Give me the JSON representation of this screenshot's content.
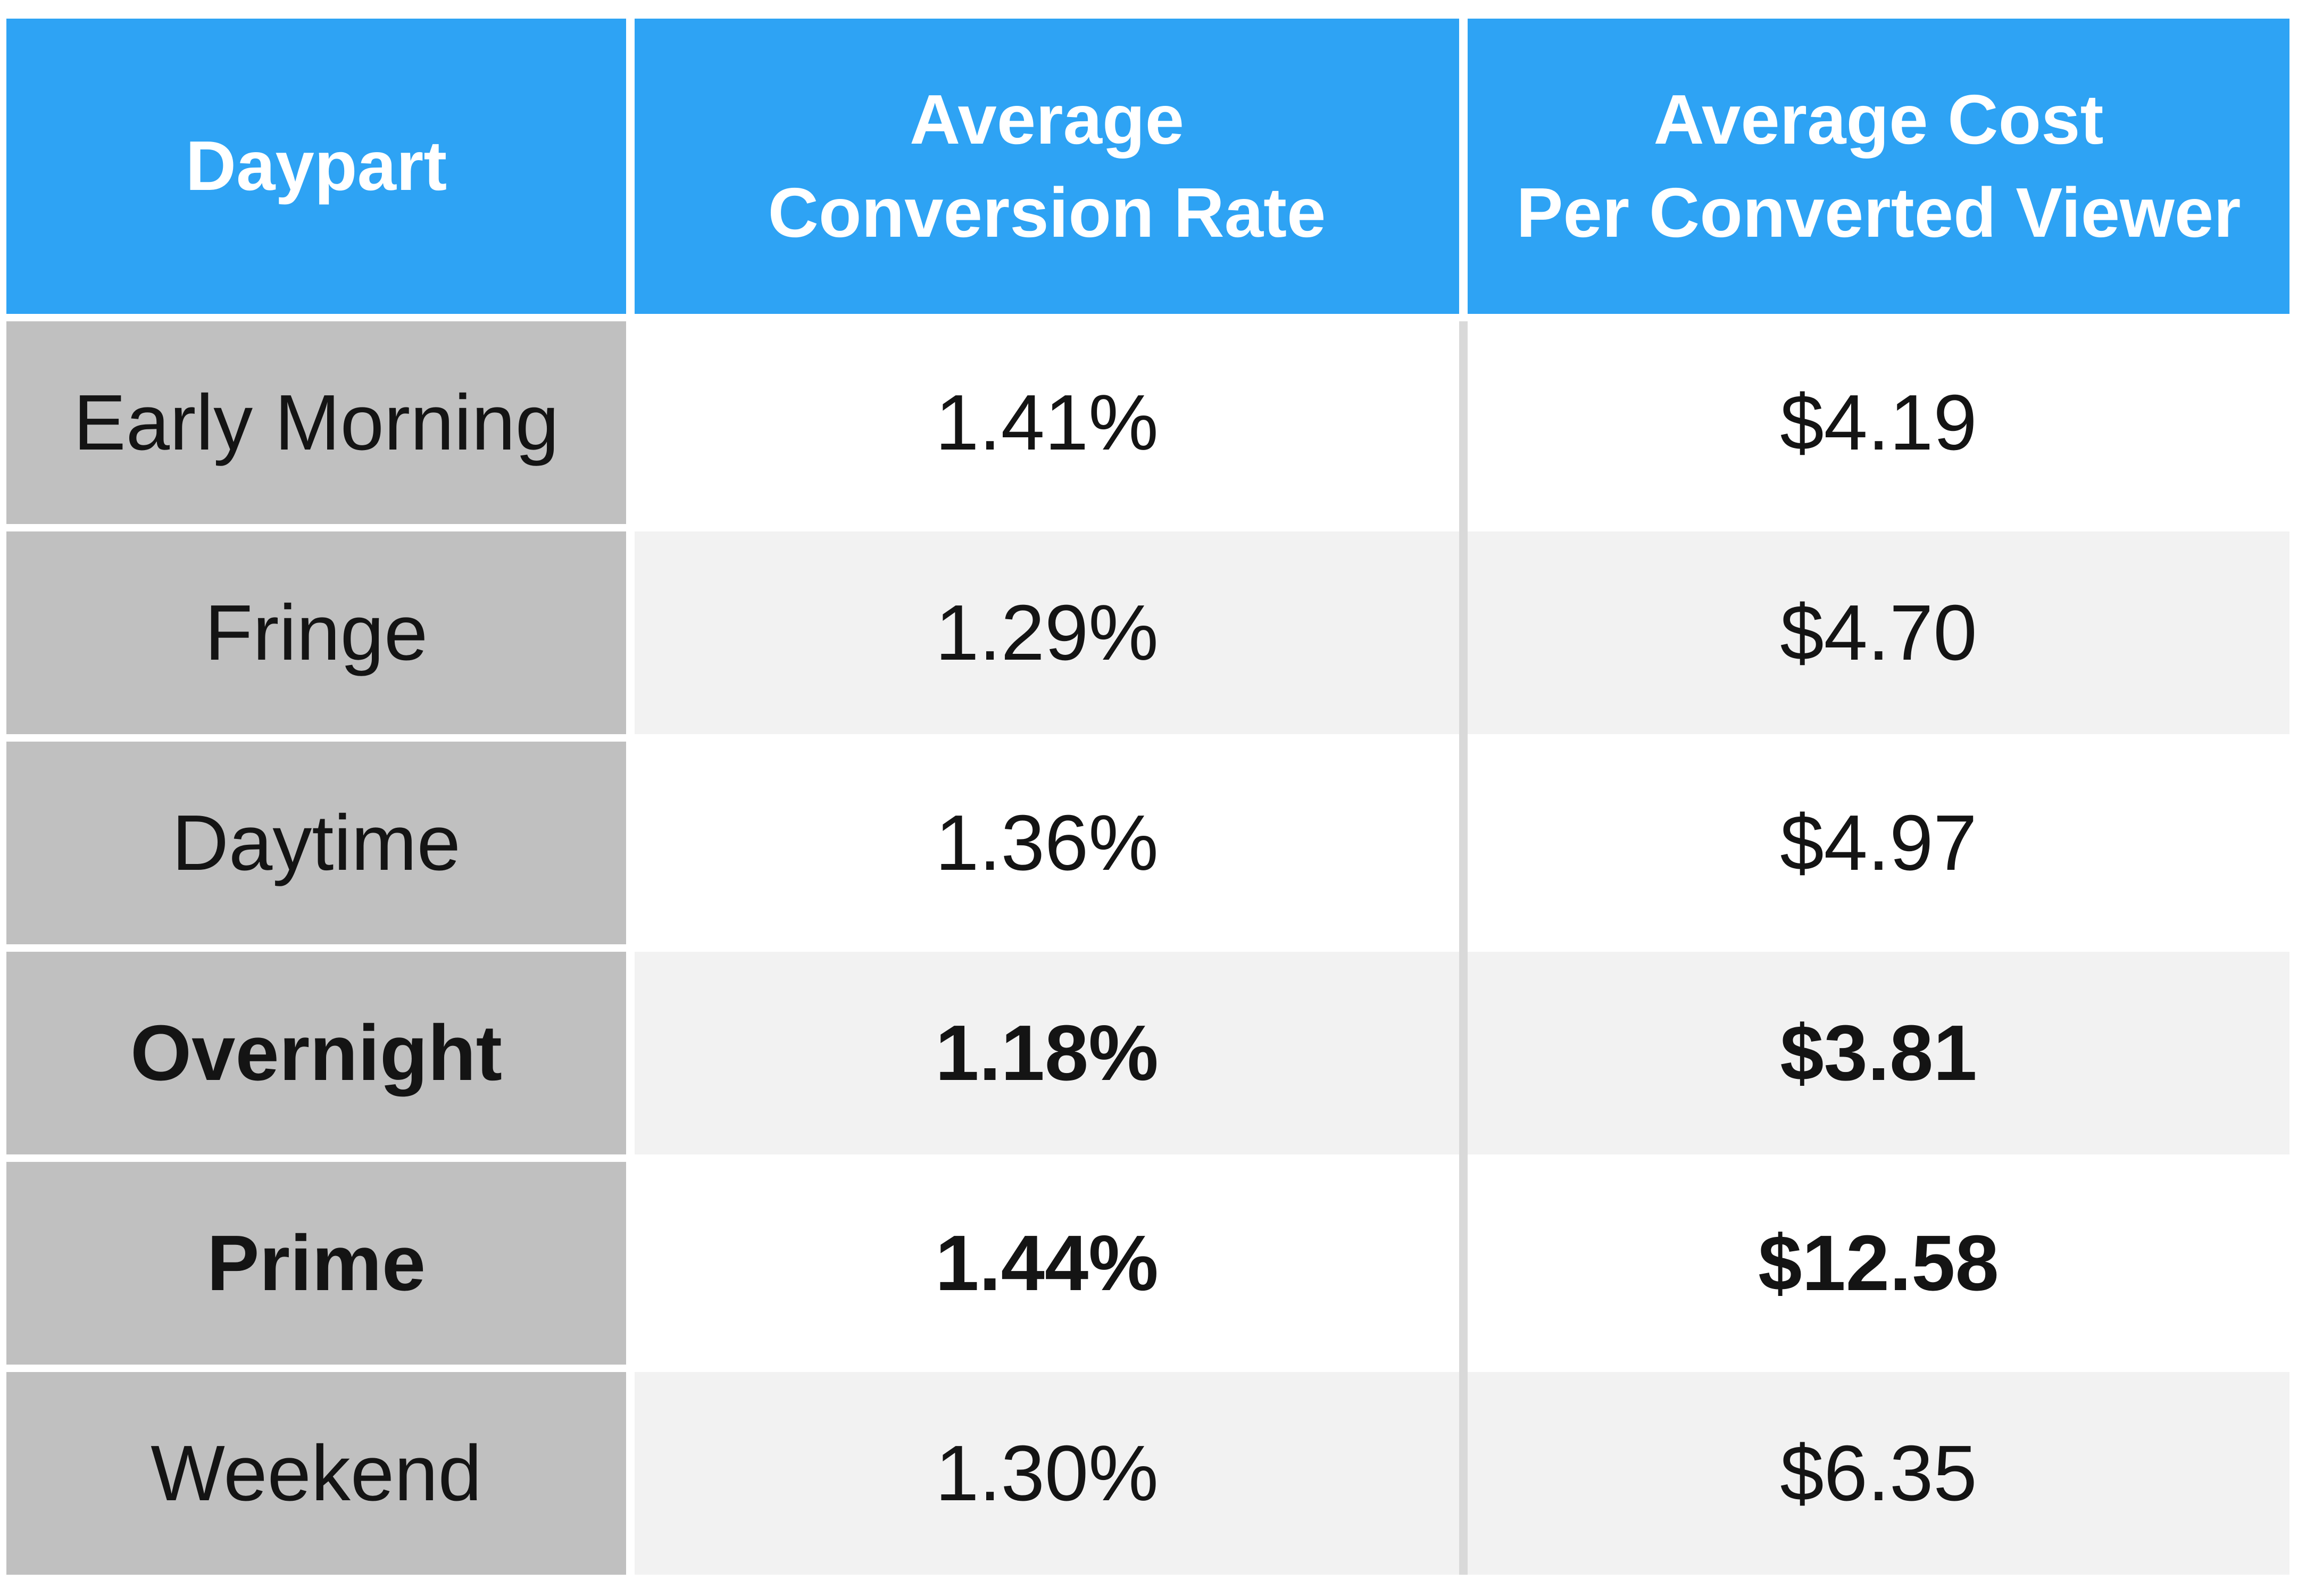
{
  "colors": {
    "header_bg": "#2EA3F4",
    "header_text": "#FFFFFF",
    "daypart_col_bg": "#C0C0C0",
    "row_white": "#FFFFFF",
    "row_shade": "#F2F2F2",
    "divider": "#D9D9D9",
    "body_text": "#141414"
  },
  "table": {
    "columns": [
      {
        "line1": "Daypart",
        "line2": null
      },
      {
        "line1": "Average",
        "line2": "Conversion Rate"
      },
      {
        "line1": "Average Cost",
        "line2": "Per Converted Viewer"
      }
    ],
    "rows": [
      {
        "daypart": "Early Morning",
        "conversion_rate": "1.41%",
        "cost_per_viewer": "$4.19",
        "bold": false
      },
      {
        "daypart": "Fringe",
        "conversion_rate": "1.29%",
        "cost_per_viewer": "$4.70",
        "bold": false
      },
      {
        "daypart": "Daytime",
        "conversion_rate": "1.36%",
        "cost_per_viewer": "$4.97",
        "bold": false
      },
      {
        "daypart": "Overnight",
        "conversion_rate": "1.18%",
        "cost_per_viewer": "$3.81",
        "bold": true
      },
      {
        "daypart": "Prime",
        "conversion_rate": "1.44%",
        "cost_per_viewer": "$12.58",
        "bold": true
      },
      {
        "daypart": "Weekend",
        "conversion_rate": "1.30%",
        "cost_per_viewer": "$6.35",
        "bold": false
      }
    ]
  },
  "chart_data": {
    "type": "table",
    "columns": [
      "Daypart",
      "Average Conversion Rate",
      "Average Cost Per Converted Viewer"
    ],
    "rows": [
      [
        "Early Morning",
        "1.41%",
        "$4.19"
      ],
      [
        "Fringe",
        "1.29%",
        "$4.70"
      ],
      [
        "Daytime",
        "1.36%",
        "$4.97"
      ],
      [
        "Overnight",
        "1.18%",
        "$3.81"
      ],
      [
        "Prime",
        "1.44%",
        "$12.58"
      ],
      [
        "Weekend",
        "1.30%",
        "$6.35"
      ]
    ],
    "conversion_rate_pct": [
      1.41,
      1.29,
      1.36,
      1.18,
      1.44,
      1.3
    ],
    "cost_per_converted_viewer_usd": [
      4.19,
      4.7,
      4.97,
      3.81,
      12.58,
      6.35
    ],
    "emphasized_rows": [
      "Overnight",
      "Prime"
    ],
    "legend_position": "none",
    "grid": false
  }
}
